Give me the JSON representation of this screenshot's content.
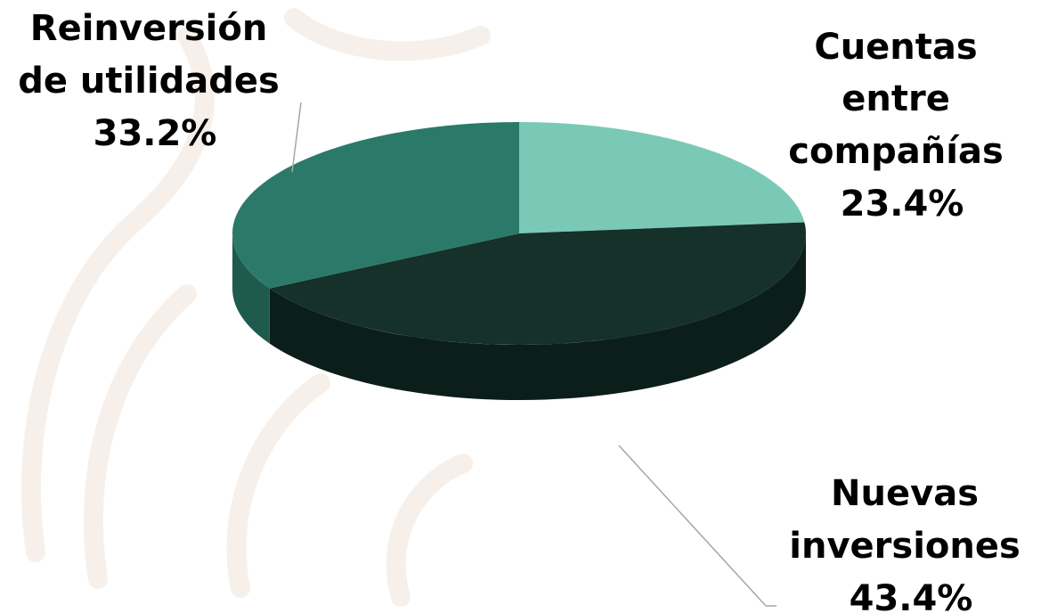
{
  "chart_data": {
    "type": "pie",
    "style": "3d",
    "start": "12 o'clock",
    "direction": "clockwise",
    "slices": [
      {
        "label_lines": [
          "Cuentas",
          "entre",
          "compañías"
        ],
        "value": 23.4,
        "value_label": "23.4%",
        "color": "#79C9B6",
        "side_color": "#4e9a87"
      },
      {
        "label_lines": [
          "Nuevas",
          "inversiones"
        ],
        "value": 43.4,
        "value_label": "43.4%",
        "color": "#153129",
        "side_color": "#0c1e19"
      },
      {
        "label_lines": [
          "Reinversión",
          "de utilidades"
        ],
        "value": 33.2,
        "value_label": "33.2%",
        "color": "#2B7A69",
        "side_color": "#1e5a4d"
      }
    ]
  }
}
